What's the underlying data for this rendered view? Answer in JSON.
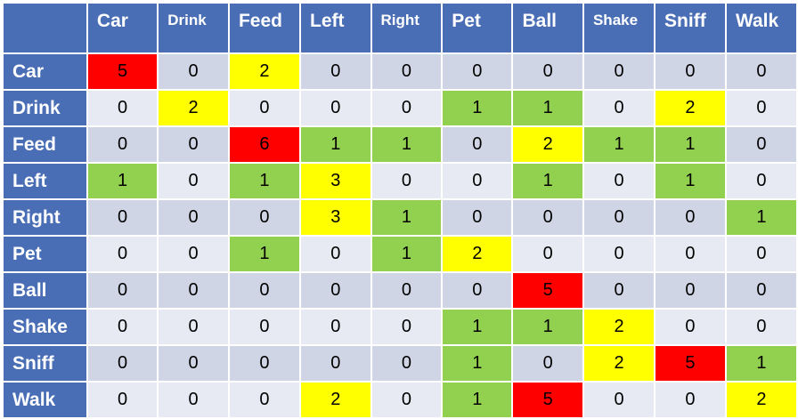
{
  "colors": {
    "header_bg": "#4a6eb5",
    "header_text": "#ffffff",
    "band_a": "#d0d5e6",
    "band_b": "#e8eaf3",
    "red": "#ff0000",
    "yellow": "#ffff00",
    "green": "#92d050"
  },
  "chart_data": {
    "type": "heatmap",
    "title": "",
    "columns": [
      "Car",
      "Drink",
      "Feed",
      "Left",
      "Right",
      "Pet",
      "Ball",
      "Shake",
      "Sniff",
      "Walk"
    ],
    "rows": [
      "Car",
      "Drink",
      "Feed",
      "Left",
      "Right",
      "Pet",
      "Ball",
      "Shake",
      "Sniff",
      "Walk"
    ],
    "values": [
      [
        5,
        0,
        2,
        0,
        0,
        0,
        0,
        0,
        0,
        0
      ],
      [
        0,
        2,
        0,
        0,
        0,
        1,
        1,
        0,
        2,
        0
      ],
      [
        0,
        0,
        6,
        1,
        1,
        0,
        2,
        1,
        1,
        0
      ],
      [
        1,
        0,
        1,
        3,
        0,
        0,
        1,
        0,
        1,
        0
      ],
      [
        0,
        0,
        0,
        3,
        1,
        0,
        0,
        0,
        0,
        1
      ],
      [
        0,
        0,
        1,
        0,
        1,
        2,
        0,
        0,
        0,
        0
      ],
      [
        0,
        0,
        0,
        0,
        0,
        0,
        5,
        0,
        0,
        0
      ],
      [
        0,
        0,
        0,
        0,
        0,
        1,
        1,
        2,
        0,
        0
      ],
      [
        0,
        0,
        0,
        0,
        0,
        1,
        0,
        2,
        5,
        1
      ],
      [
        0,
        0,
        0,
        2,
        0,
        1,
        5,
        0,
        0,
        2
      ]
    ],
    "highlight": [
      [
        "red",
        "",
        "yellow",
        "",
        "",
        "",
        "",
        "",
        "",
        ""
      ],
      [
        "",
        "yellow",
        "",
        "",
        "",
        "green",
        "green",
        "",
        "yellow",
        ""
      ],
      [
        "",
        "",
        "red",
        "green",
        "green",
        "",
        "yellow",
        "green",
        "green",
        ""
      ],
      [
        "green",
        "",
        "green",
        "yellow",
        "",
        "",
        "green",
        "",
        "green",
        ""
      ],
      [
        "",
        "",
        "",
        "yellow",
        "green",
        "",
        "",
        "",
        "",
        "green"
      ],
      [
        "",
        "",
        "green",
        "",
        "green",
        "yellow",
        "",
        "",
        "",
        ""
      ],
      [
        "",
        "",
        "",
        "",
        "",
        "",
        "red",
        "",
        "",
        ""
      ],
      [
        "",
        "",
        "",
        "",
        "",
        "green",
        "green",
        "yellow",
        "",
        ""
      ],
      [
        "",
        "",
        "",
        "",
        "",
        "green",
        "",
        "yellow",
        "red",
        "green"
      ],
      [
        "",
        "",
        "",
        "yellow",
        "",
        "green",
        "red",
        "",
        "",
        "yellow"
      ]
    ]
  }
}
